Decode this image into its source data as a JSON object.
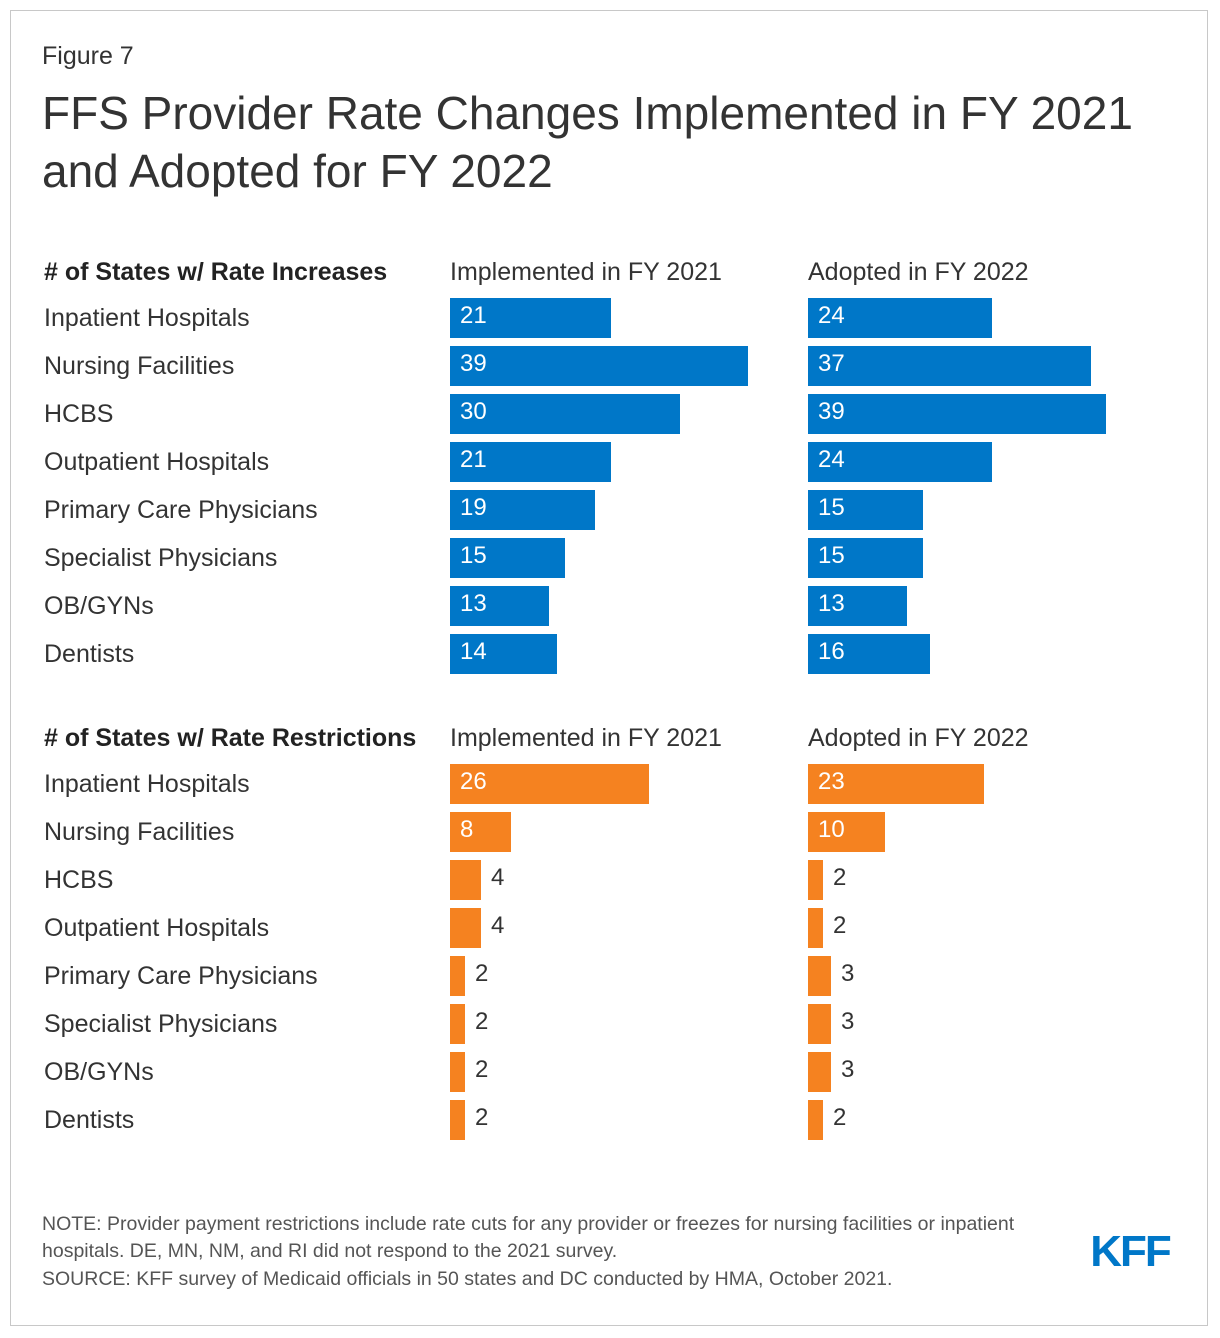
{
  "figure_label": "Figure 7",
  "title": "FFS Provider Rate Changes Implemented in FY 2021 and Adopted for FY 2022",
  "logo": "KFF",
  "notes": {
    "note": "NOTE: Provider payment restrictions include rate cuts for any provider or freezes for nursing facilities or inpatient hospitals. DE, MN, NM, and RI did not respond to the 2021 survey.",
    "source": "SOURCE: KFF survey of Medicaid officials in 50 states and DC conducted by HMA, October 2021."
  },
  "colors": {
    "increase": "#0077c8",
    "restriction": "#f58220",
    "logo": "#0077c8"
  },
  "chart_data": [
    {
      "type": "bar",
      "title": "# of States w/ Rate Increases",
      "categories": [
        "Inpatient Hospitals",
        "Nursing Facilities",
        "HCBS",
        "Outpatient Hospitals",
        "Primary Care Physicians",
        "Specialist Physicians",
        "OB/GYNs",
        "Dentists"
      ],
      "series": [
        {
          "name": "Implemented in FY 2021",
          "values": [
            21,
            39,
            30,
            21,
            19,
            15,
            13,
            14
          ]
        },
        {
          "name": "Adopted in FY 2022",
          "values": [
            24,
            37,
            39,
            24,
            15,
            15,
            13,
            16
          ]
        }
      ]
    },
    {
      "type": "bar",
      "title": "# of States w/ Rate Restrictions",
      "categories": [
        "Inpatient Hospitals",
        "Nursing Facilities",
        "HCBS",
        "Outpatient Hospitals",
        "Primary Care Physicians",
        "Specialist Physicians",
        "OB/GYNs",
        "Dentists"
      ],
      "series": [
        {
          "name": "Implemented in FY 2021",
          "values": [
            26,
            8,
            4,
            4,
            2,
            2,
            2,
            2
          ]
        },
        {
          "name": "Adopted in FY 2022",
          "values": [
            23,
            10,
            2,
            2,
            3,
            3,
            3,
            2
          ]
        }
      ]
    }
  ]
}
